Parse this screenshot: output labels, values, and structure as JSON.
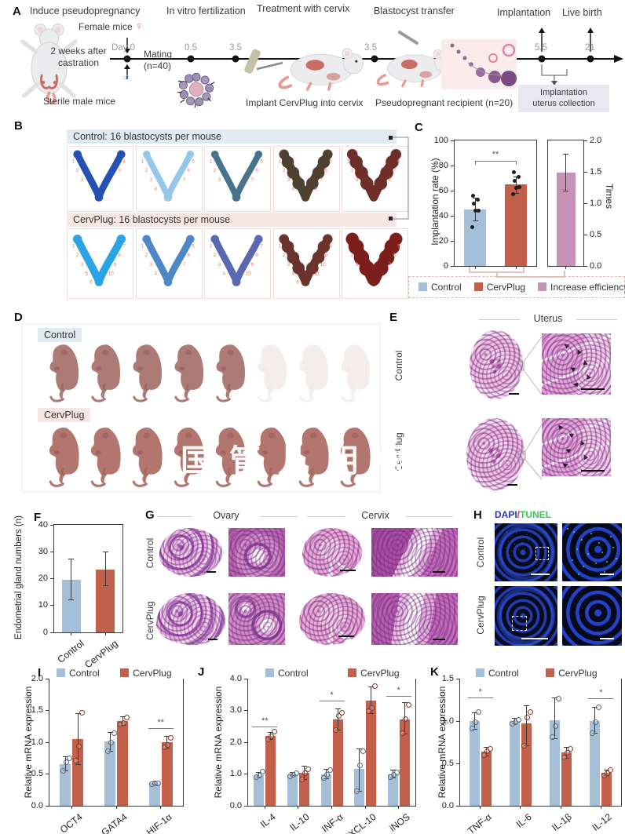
{
  "colors": {
    "control": "#a5bfd8",
    "cervplug": "#c2604b",
    "increase": "#c493b6",
    "control_dot": "#51677a",
    "cervplug_dot": "#8a382e",
    "increase_dot": "#8a5878",
    "dapi_blue": "#2a35cc",
    "slash_pink": "#cc2a6e",
    "tunel_green": "#35c855"
  },
  "panelA": {
    "label": "A",
    "h_induce": "Induce pseudopregnancy",
    "h_ivf": "In vitro fertilization",
    "h_treat": "Treatment with cervix",
    "h_blast": "Blastocyst transfer",
    "h_impl": "Implantation",
    "h_live": "Live birth",
    "female": "Female mice",
    "female_sym": "♀",
    "male_sym": "♂",
    "castration1": "2 weeks after",
    "castration2": "castration",
    "sterile": "Sterile male mice",
    "day0": "Day 0",
    "mating": "Mating",
    "mating_n": "(n=40)",
    "t05": "0.5",
    "t35a": "3.5",
    "t35b": "3.5",
    "t55": "5.5",
    "t21": "21",
    "implant_caption": "Implant CervPlug into cervix",
    "recipient_caption": "Pseudopregnant recipient (n=20)",
    "collection1": "Implantation",
    "collection2": "uterus collection"
  },
  "panelB": {
    "label": "B",
    "control_header": "Control: 16 blastocysts per mouse",
    "cervplug_header": "CervPlug: 16 blastocysts per mouse",
    "rows": [
      {
        "tiles": [
          {
            "c": "#2550b4",
            "w": 9,
            "bumps": false,
            "nl": [
              "1",
              "2",
              "3"
            ],
            "nr": [
              "4",
              "5"
            ]
          },
          {
            "c": "#96c6e8",
            "w": 8,
            "bumps": false,
            "nl": [
              "1",
              "2",
              "3",
              "4"
            ],
            "nr": [
              "5",
              "6",
              "7"
            ]
          },
          {
            "c": "#47748c",
            "w": 8,
            "bumps": false,
            "nl": [
              "1",
              "2",
              "3"
            ],
            "nr": [
              "5",
              "6",
              "7"
            ]
          },
          {
            "c": "#50402f",
            "w": 11,
            "bumps": true,
            "nl": [
              "1",
              "2",
              "3",
              "4"
            ],
            "nr": [
              "5",
              "6",
              "7",
              "8"
            ]
          },
          {
            "c": "#6e2f28",
            "w": 12,
            "bumps": true,
            "nl": [
              "1",
              "2",
              "3"
            ],
            "nr": [
              "6",
              "7",
              "8"
            ]
          }
        ]
      },
      {
        "tiles": [
          {
            "c": "#2ba4e6",
            "w": 10,
            "bumps": false,
            "nl": [
              "1",
              "2",
              "3",
              "5",
              "6"
            ],
            "nr": [
              "7",
              "8",
              "9",
              "10"
            ]
          },
          {
            "c": "#4f86c6",
            "w": 9,
            "bumps": false,
            "nl": [
              "1",
              "2",
              "3",
              "4"
            ],
            "nr": [
              "5",
              "6",
              "7"
            ]
          },
          {
            "c": "#5a68b2",
            "w": 9,
            "bumps": false,
            "nl": [
              "1",
              "2",
              "3",
              "4"
            ],
            "nr": [
              "7",
              "8",
              "9",
              "10"
            ]
          },
          {
            "c": "#6a332c",
            "w": 11,
            "bumps": true,
            "nl": [
              "1",
              "2",
              "3",
              "4",
              "5"
            ],
            "nr": [
              "8",
              "9",
              "10",
              "11"
            ]
          },
          {
            "c": "#7c1f1c",
            "w": 15,
            "bumps": true,
            "nl": [
              "1",
              "2",
              "3"
            ],
            "nr": [
              "5",
              "6",
              "7"
            ]
          }
        ]
      }
    ]
  },
  "panelC": {
    "label": "C",
    "legend": [
      "Control",
      "CervPlug",
      "Increase efficiency"
    ]
  },
  "panelD": {
    "label": "D",
    "control": "Control",
    "cervplug": "CervPlug",
    "watermark": "国管儿明根",
    "rows": [
      {
        "n": 8,
        "faded_from": 5
      },
      {
        "n": 8,
        "faded_from": 8
      }
    ]
  },
  "panelE": {
    "label": "E",
    "title": "Uterus",
    "row1": "Control",
    "row2": "CervPlug"
  },
  "panelF": {
    "label": "F"
  },
  "panelG": {
    "label": "G",
    "col1": "Ovary",
    "col2": "Cervix",
    "row1": "Control",
    "row2": "CervPlug"
  },
  "panelH": {
    "label": "H",
    "title_dapi": "DAPI",
    "title_slash": "/",
    "title_tunel": "TUNEL",
    "row1": "Control",
    "row2": "CervPlug"
  },
  "panelI": {
    "label": "I"
  },
  "panelJ": {
    "label": "J"
  },
  "panelK": {
    "label": "K"
  },
  "legend_pair": [
    "Control",
    "CervPlug"
  ],
  "chart_data": [
    {
      "id": "implantation",
      "type": "bar",
      "ylabel": "Implantation rate (%)",
      "ylim": [
        0,
        100
      ],
      "yticks": [
        "0",
        "20",
        "40",
        "60",
        "80",
        "100"
      ],
      "bw": 28,
      "dot": "filled",
      "bars": [
        {
          "name": "Control",
          "color": "control",
          "value": 45,
          "err": [
            36,
            54
          ],
          "dots": [
            31,
            44,
            44,
            50,
            53,
            56
          ]
        },
        {
          "name": "CervPlug",
          "color": "cervplug",
          "value": 65,
          "err": [
            58,
            71
          ],
          "dots": [
            57,
            62,
            63,
            68,
            71,
            75
          ]
        }
      ],
      "sig": [
        {
          "i0": 0,
          "i1": 1,
          "text": "**",
          "y": 84
        }
      ]
    },
    {
      "id": "times",
      "type": "bar",
      "ylabel": "Times",
      "ylim": [
        0,
        2
      ],
      "yticks": [
        "0.0",
        "0.5",
        "1.0",
        "1.5",
        "2.0"
      ],
      "bw": 24,
      "side": "right",
      "bars": [
        {
          "name": "Increase efficiency",
          "color": "increase",
          "value": 1.49,
          "err": [
            1.2,
            1.78
          ],
          "dots": []
        }
      ]
    },
    {
      "id": "glands",
      "type": "bar",
      "ylabel": "Endometrial gland numbers (n)",
      "ylim": [
        0,
        40
      ],
      "yticks": [
        "0",
        "10",
        "20",
        "30",
        "40"
      ],
      "bw": 24,
      "bars": [
        {
          "name": "Control",
          "color": "control",
          "value": 19.5,
          "err": [
            12,
            27.3
          ],
          "dots": []
        },
        {
          "name": "CervPlug",
          "color": "cervplug",
          "value": 23.5,
          "err": [
            17.3,
            29.8
          ],
          "dots": []
        }
      ],
      "xlabels": [
        "Control",
        "CervPlug"
      ]
    },
    {
      "id": "mrna1",
      "type": "bar",
      "ylabel": "Relative mRNA expression",
      "ylim": [
        0,
        2
      ],
      "yticks": [
        "0.0",
        "0.5",
        "1.0",
        "1.5",
        "2.0"
      ],
      "bw": 14,
      "dot": "open",
      "categories": [
        "OCT4",
        "GATA4",
        "HIF-1α"
      ],
      "series": [
        {
          "name": "Control",
          "color": "control",
          "values": [
            0.66,
            1.01,
            0.36
          ],
          "err": [
            [
              0.55,
              0.77
            ],
            [
              0.86,
              1.15
            ],
            [
              0.34,
              0.38
            ]
          ],
          "dots": [
            [
              0.56,
              0.7,
              0.76
            ],
            [
              0.87,
              1.01,
              1.15
            ],
            [
              0.35,
              0.36,
              0.37
            ]
          ]
        },
        {
          "name": "CervPlug",
          "color": "cervplug",
          "values": [
            1.05,
            1.33,
            1.0
          ],
          "err": [
            [
              0.65,
              1.45
            ],
            [
              1.27,
              1.4
            ],
            [
              0.91,
              1.09
            ]
          ],
          "dots": [
            [
              0.72,
              0.95,
              1.48
            ],
            [
              1.29,
              1.32,
              1.4
            ],
            [
              0.93,
              0.97,
              1.08
            ]
          ]
        }
      ],
      "sig": [
        {
          "cat": 2,
          "text": "**",
          "y": 1.22
        }
      ]
    },
    {
      "id": "mrna2",
      "type": "bar",
      "ylabel": "Relative mRNA expression",
      "ylim": [
        0,
        4
      ],
      "yticks": [
        "0.0",
        "1.0",
        "2.0",
        "3.0",
        "4.0"
      ],
      "bw": 13,
      "dot": "open",
      "categories": [
        "IL-4",
        "IL-10",
        "INF-α",
        "CXCL-10",
        "iNOS"
      ],
      "series": [
        {
          "name": "Control",
          "color": "control",
          "values": [
            0.97,
            1.0,
            1.0,
            1.15,
            1.0
          ],
          "err": [
            [
              0.9,
              1.04
            ],
            [
              0.94,
              1.06
            ],
            [
              0.85,
              1.15
            ],
            [
              0.45,
              1.8
            ],
            [
              0.88,
              1.12
            ]
          ],
          "dots": [
            [
              0.93,
              0.97,
              1.1
            ],
            [
              0.95,
              1.0,
              1.05
            ],
            [
              0.9,
              1.0,
              1.15
            ],
            [
              0.48,
              1.3,
              1.75
            ],
            [
              0.92,
              1.0,
              1.08
            ]
          ]
        },
        {
          "name": "CervPlug",
          "color": "cervplug",
          "values": [
            2.2,
            1.03,
            2.72,
            3.3,
            2.72
          ],
          "err": [
            [
              2.08,
              2.32
            ],
            [
              0.82,
              1.24
            ],
            [
              2.38,
              3.05
            ],
            [
              2.9,
              3.75
            ],
            [
              2.25,
              3.25
            ]
          ],
          "dots": [
            [
              2.1,
              2.2,
              2.35
            ],
            [
              0.85,
              1.05,
              1.18
            ],
            [
              2.4,
              2.85,
              2.95
            ],
            [
              3.0,
              3.1,
              3.8
            ],
            [
              2.3,
              2.75,
              3.2
            ]
          ]
        }
      ],
      "sig": [
        {
          "cat": 0,
          "text": "**",
          "y": 2.5
        },
        {
          "cat": 2,
          "text": "*",
          "y": 3.32
        },
        {
          "cat": 4,
          "text": "*",
          "y": 3.45
        }
      ]
    },
    {
      "id": "mrna3",
      "type": "bar",
      "ylabel": "Relative mRNA expression",
      "ylim": [
        0,
        1.5
      ],
      "yticks": [
        "0.0",
        "0.5",
        "1.0",
        "1.5"
      ],
      "bw": 13,
      "dot": "open",
      "categories": [
        "TNF-α",
        "IL-6",
        "IL-1β",
        "IL-12"
      ],
      "series": [
        {
          "name": "Control",
          "color": "control",
          "values": [
            1.0,
            1.0,
            1.01,
            1.0
          ],
          "err": [
            [
              0.9,
              1.1
            ],
            [
              0.97,
              1.03
            ],
            [
              0.79,
              1.27
            ],
            [
              0.86,
              1.16
            ]
          ],
          "dots": [
            [
              0.92,
              1.0,
              1.12
            ],
            [
              0.98,
              1.0,
              1.02
            ],
            [
              0.82,
              0.95,
              1.27
            ],
            [
              0.87,
              1.0,
              1.17
            ]
          ]
        },
        {
          "name": "CervPlug",
          "color": "cervplug",
          "values": [
            0.64,
            0.97,
            0.63,
            0.39
          ],
          "err": [
            [
              0.59,
              0.69
            ],
            [
              0.71,
              1.18
            ],
            [
              0.56,
              0.69
            ],
            [
              0.36,
              0.42
            ]
          ],
          "dots": [
            [
              0.61,
              0.65,
              0.68
            ],
            [
              0.72,
              1.05,
              1.12
            ],
            [
              0.58,
              0.63,
              0.68
            ],
            [
              0.37,
              0.39,
              0.43
            ]
          ]
        }
      ],
      "sig": [
        {
          "cat": 0,
          "text": "*",
          "y": 1.28
        },
        {
          "cat": 3,
          "text": "*",
          "y": 1.27
        }
      ]
    }
  ]
}
